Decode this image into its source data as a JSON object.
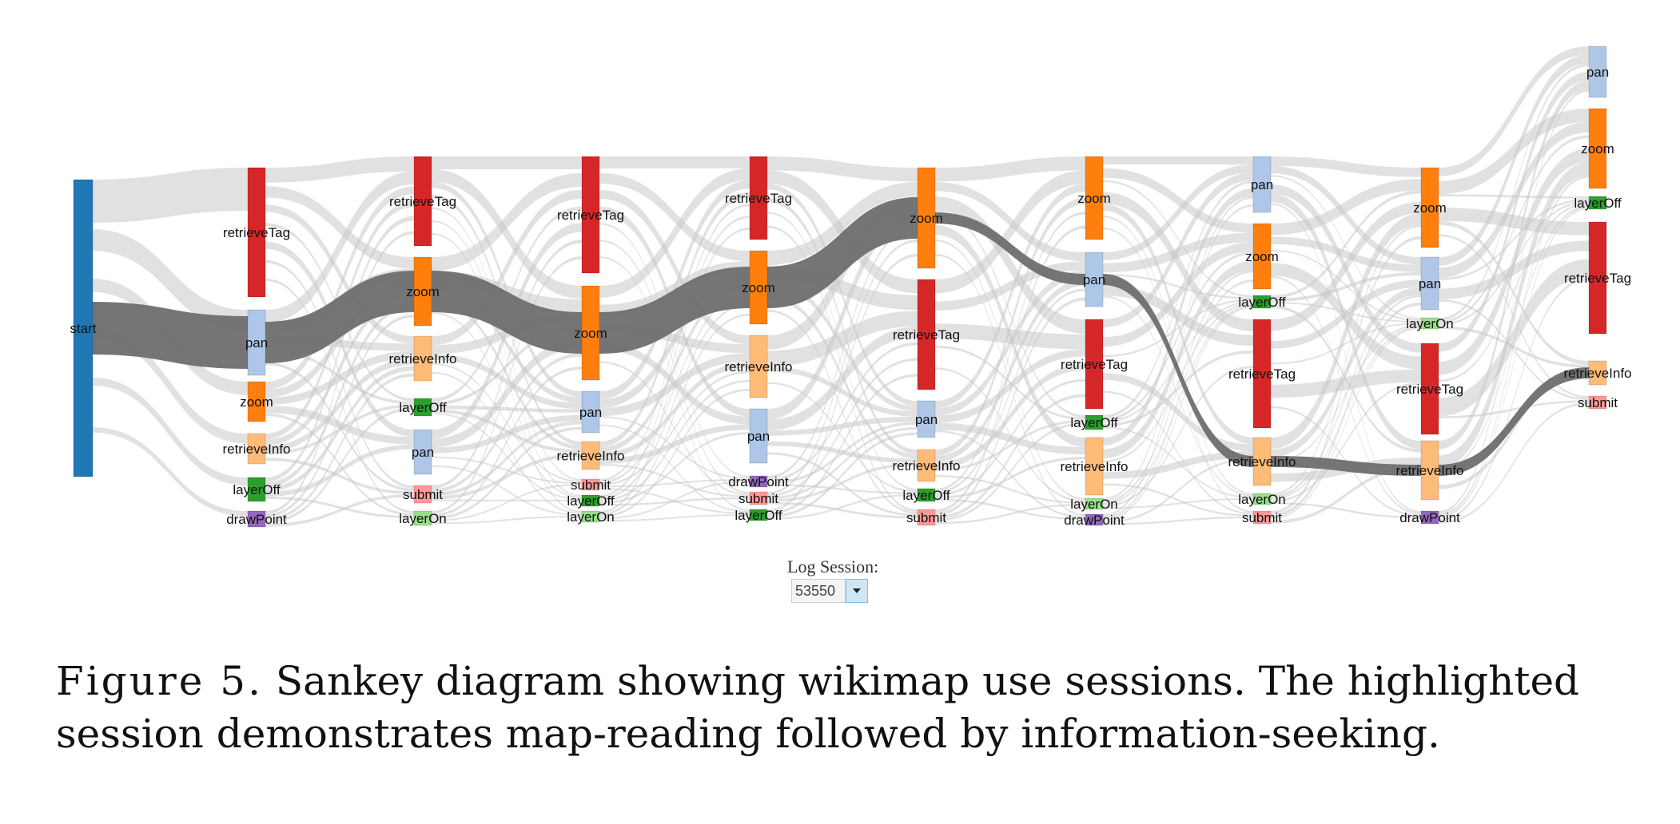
{
  "nodes": [
    {
      "id": "n0",
      "label": "start",
      "color": "#1f77b4",
      "col": 0
    },
    {
      "id": "c1_retrieveTag",
      "label": "retrieveTag",
      "color": "#d62728",
      "col": 1
    },
    {
      "id": "c1_pan",
      "label": "pan",
      "color": "#aec7e8",
      "col": 1
    },
    {
      "id": "c1_zoom",
      "label": "zoom",
      "color": "#ff7f0e",
      "col": 1
    },
    {
      "id": "c1_retrieveInfo",
      "label": "retrieveInfo",
      "color": "#ffbb78",
      "col": 1
    },
    {
      "id": "c1_layerOff",
      "label": "layerOff",
      "color": "#2ca02c",
      "col": 1
    },
    {
      "id": "c1_drawPoint",
      "label": "drawPoint",
      "color": "#9467bd",
      "col": 1
    },
    {
      "id": "c2_retrieveTag",
      "label": "retrieveTag",
      "color": "#d62728",
      "col": 2
    },
    {
      "id": "c2_zoom",
      "label": "zoom",
      "color": "#ff7f0e",
      "col": 2
    },
    {
      "id": "c2_retrieveInfo",
      "label": "retrieveInfo",
      "color": "#ffbb78",
      "col": 2
    },
    {
      "id": "c2_layerOff",
      "label": "layerOff",
      "color": "#2ca02c",
      "col": 2
    },
    {
      "id": "c2_pan",
      "label": "pan",
      "color": "#aec7e8",
      "col": 2
    },
    {
      "id": "c2_submit",
      "label": "submit",
      "color": "#ff9896",
      "col": 2
    },
    {
      "id": "c2_layerOn",
      "label": "layerOn",
      "color": "#98df8a",
      "col": 2
    },
    {
      "id": "c3_retrieveTag",
      "label": "retrieveTag",
      "color": "#d62728",
      "col": 3
    },
    {
      "id": "c3_zoom",
      "label": "zoom",
      "color": "#ff7f0e",
      "col": 3
    },
    {
      "id": "c3_pan",
      "label": "pan",
      "color": "#aec7e8",
      "col": 3
    },
    {
      "id": "c3_retrieveInfo",
      "label": "retrieveInfo",
      "color": "#ffbb78",
      "col": 3
    },
    {
      "id": "c3_submit",
      "label": "submit",
      "color": "#ff9896",
      "col": 3
    },
    {
      "id": "c3_layerOff",
      "label": "layerOff",
      "color": "#2ca02c",
      "col": 3
    },
    {
      "id": "c3_layerOn",
      "label": "layerOn",
      "color": "#98df8a",
      "col": 3
    },
    {
      "id": "c4_retrieveTag",
      "label": "retrieveTag",
      "color": "#d62728",
      "col": 4
    },
    {
      "id": "c4_zoom",
      "label": "zoom",
      "color": "#ff7f0e",
      "col": 4
    },
    {
      "id": "c4_retrieveInfo",
      "label": "retrieveInfo",
      "color": "#ffbb78",
      "col": 4
    },
    {
      "id": "c4_pan",
      "label": "pan",
      "color": "#aec7e8",
      "col": 4
    },
    {
      "id": "c4_drawPoint",
      "label": "drawPoint",
      "color": "#9467bd",
      "col": 4
    },
    {
      "id": "c4_submit",
      "label": "submit",
      "color": "#ff9896",
      "col": 4
    },
    {
      "id": "c4_layerOff",
      "label": "layerOff",
      "color": "#2ca02c",
      "col": 4
    },
    {
      "id": "c5_zoom",
      "label": "zoom",
      "color": "#ff7f0e",
      "col": 5
    },
    {
      "id": "c5_retrieveTag",
      "label": "retrieveTag",
      "color": "#d62728",
      "col": 5
    },
    {
      "id": "c5_pan",
      "label": "pan",
      "color": "#aec7e8",
      "col": 5
    },
    {
      "id": "c5_retrieveInfo",
      "label": "retrieveInfo",
      "color": "#ffbb78",
      "col": 5
    },
    {
      "id": "c5_layerOff",
      "label": "layerOff",
      "color": "#2ca02c",
      "col": 5
    },
    {
      "id": "c5_submit",
      "label": "submit",
      "color": "#ff9896",
      "col": 5
    },
    {
      "id": "c6_zoom",
      "label": "zoom",
      "color": "#ff7f0e",
      "col": 6
    },
    {
      "id": "c6_pan",
      "label": "pan",
      "color": "#aec7e8",
      "col": 6
    },
    {
      "id": "c6_retrieveTag",
      "label": "retrieveTag",
      "color": "#d62728",
      "col": 6
    },
    {
      "id": "c6_layerOff",
      "label": "layerOff",
      "color": "#2ca02c",
      "col": 6
    },
    {
      "id": "c6_retrieveInfo",
      "label": "retrieveInfo",
      "color": "#ffbb78",
      "col": 6
    },
    {
      "id": "c6_layerOn",
      "label": "layerOn",
      "color": "#98df8a",
      "col": 6
    },
    {
      "id": "c6_drawPoint",
      "label": "drawPoint",
      "color": "#9467bd",
      "col": 6
    },
    {
      "id": "c7_pan",
      "label": "pan",
      "color": "#aec7e8",
      "col": 7
    },
    {
      "id": "c7_zoom",
      "label": "zoom",
      "color": "#ff7f0e",
      "col": 7
    },
    {
      "id": "c7_layerOff",
      "label": "layerOff",
      "color": "#2ca02c",
      "col": 7
    },
    {
      "id": "c7_retrieveTag",
      "label": "retrieveTag",
      "color": "#d62728",
      "col": 7
    },
    {
      "id": "c7_retrieveInfo",
      "label": "retrieveInfo",
      "color": "#ffbb78",
      "col": 7
    },
    {
      "id": "c7_layerOn",
      "label": "layerOn",
      "color": "#98df8a",
      "col": 7
    },
    {
      "id": "c7_submit",
      "label": "submit",
      "color": "#ff9896",
      "col": 7
    },
    {
      "id": "c8_zoom",
      "label": "zoom",
      "color": "#ff7f0e",
      "col": 8
    },
    {
      "id": "c8_pan",
      "label": "pan",
      "color": "#aec7e8",
      "col": 8
    },
    {
      "id": "c8_layerOn",
      "label": "layerOn",
      "color": "#98df8a",
      "col": 8
    },
    {
      "id": "c8_retrieveTag",
      "label": "retrieveTag",
      "color": "#d62728",
      "col": 8
    },
    {
      "id": "c8_retrieveInfo",
      "label": "retrieveInfo",
      "color": "#ffbb78",
      "col": 8
    },
    {
      "id": "c8_drawPoint",
      "label": "drawPoint",
      "color": "#9467bd",
      "col": 8
    },
    {
      "id": "c9_pan",
      "label": "pan",
      "color": "#aec7e8",
      "col": 9
    },
    {
      "id": "c9_zoom",
      "label": "zoom",
      "color": "#ff7f0e",
      "col": 9
    },
    {
      "id": "c9_layerOff",
      "label": "layerOff",
      "color": "#2ca02c",
      "col": 9
    },
    {
      "id": "c9_retrieveTag",
      "label": "retrieveTag",
      "color": "#d62728",
      "col": 9
    },
    {
      "id": "c9_retrieveInfo",
      "label": "retrieveInfo",
      "color": "#ffbb78",
      "col": 9
    },
    {
      "id": "c9_submit",
      "label": "submit",
      "color": "#ff9896",
      "col": 9
    }
  ],
  "highlighted_path": [
    "n0",
    "c1_pan",
    "c2_zoom",
    "c3_zoom",
    "c4_zoom",
    "c5_zoom",
    "c6_pan",
    "c7_retrieveInfo",
    "c8_retrieveInfo",
    "c9_retrieveInfo"
  ],
  "link_color": "#c9c9c9",
  "highlight_color": "#6e6e6e",
  "session": {
    "label": "Log Session:",
    "value": "53550"
  },
  "caption": {
    "label": "Figure 5.",
    "text": "Sankey diagram showing wikimap use sessions. The highlighted session demonstrates map-reading followed by information-seeking."
  }
}
